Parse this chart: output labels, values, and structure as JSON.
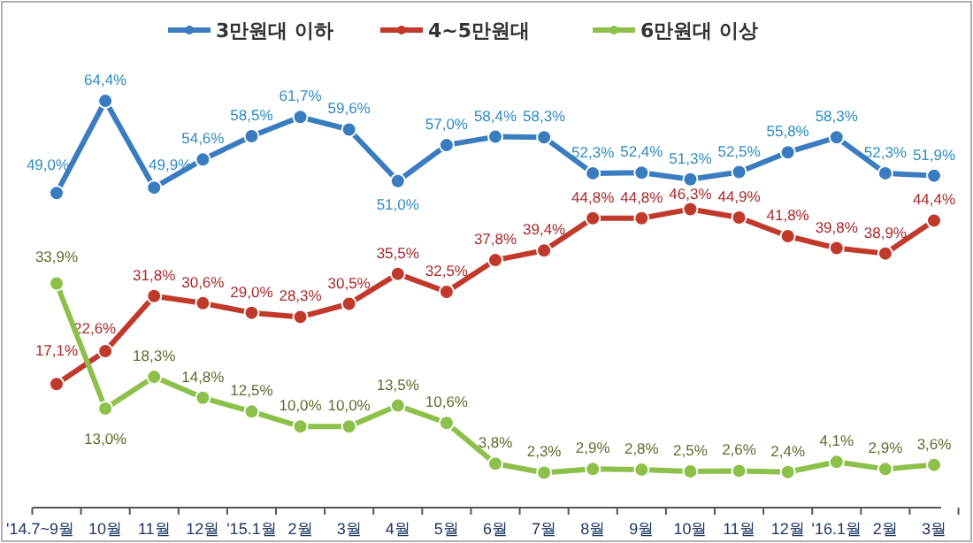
{
  "chart_data": {
    "type": "line",
    "categories": [
      "'14.7~9월",
      "10월",
      "11월",
      "12월",
      "'15.1월",
      "2월",
      "3월",
      "4월",
      "5월",
      "6월",
      "7월",
      "8월",
      "9월",
      "10월",
      "11월",
      "12월",
      "'16.1월",
      "2월",
      "3월"
    ],
    "series": [
      {
        "name": "3만원대 이하",
        "color": "#3a7cc0",
        "values": [
          49.0,
          64.4,
          49.9,
          54.6,
          58.5,
          61.7,
          59.6,
          51.0,
          57.0,
          58.4,
          58.3,
          52.3,
          52.4,
          51.3,
          52.5,
          55.8,
          58.3,
          52.3,
          51.9
        ],
        "value_labels": [
          "49,0%",
          "64,4%",
          "49,9%",
          "54,6%",
          "58,5%",
          "61,7%",
          "59,6%",
          "51,0%",
          "57,0%",
          "58,4%",
          "58,3%",
          "52,3%",
          "52,4%",
          "51,3%",
          "52,5%",
          "55,8%",
          "58,3%",
          "52,3%",
          "51,9%"
        ]
      },
      {
        "name": "4~5만원대",
        "color": "#c0392b",
        "values": [
          17.1,
          22.6,
          31.8,
          30.6,
          29.0,
          28.3,
          30.5,
          35.5,
          32.5,
          37.8,
          39.4,
          44.8,
          44.8,
          46.3,
          44.9,
          41.8,
          39.8,
          38.9,
          44.4
        ],
        "value_labels": [
          "17,1%",
          "22,6%",
          "31,8%",
          "30,6%",
          "29,0%",
          "28,3%",
          "30,5%",
          "35,5%",
          "32,5%",
          "37,8%",
          "39,4%",
          "44,8%",
          "44,8%",
          "46,3%",
          "44,9%",
          "41,8%",
          "39,8%",
          "38,9%",
          "44,4%"
        ]
      },
      {
        "name": "6만원대 이상",
        "color": "#8cc04a",
        "values": [
          33.9,
          13.0,
          18.3,
          14.8,
          12.5,
          10.0,
          10.0,
          13.5,
          10.6,
          3.8,
          2.3,
          2.9,
          2.8,
          2.5,
          2.6,
          2.4,
          4.1,
          2.9,
          3.6
        ],
        "value_labels": [
          "33,9%",
          "13,0%",
          "18,3%",
          "14,8%",
          "12,5%",
          "10,0%",
          "10,0%",
          "13,5%",
          "10,6%",
          "3,8%",
          "2,3%",
          "2,9%",
          "2,8%",
          "2,5%",
          "2,6%",
          "2,4%",
          "4,1%",
          "2,9%",
          "3,6%"
        ]
      }
    ],
    "legend": "top",
    "marker": "circle",
    "line_style": "solid",
    "tick_labels": "x",
    "grid": false
  }
}
